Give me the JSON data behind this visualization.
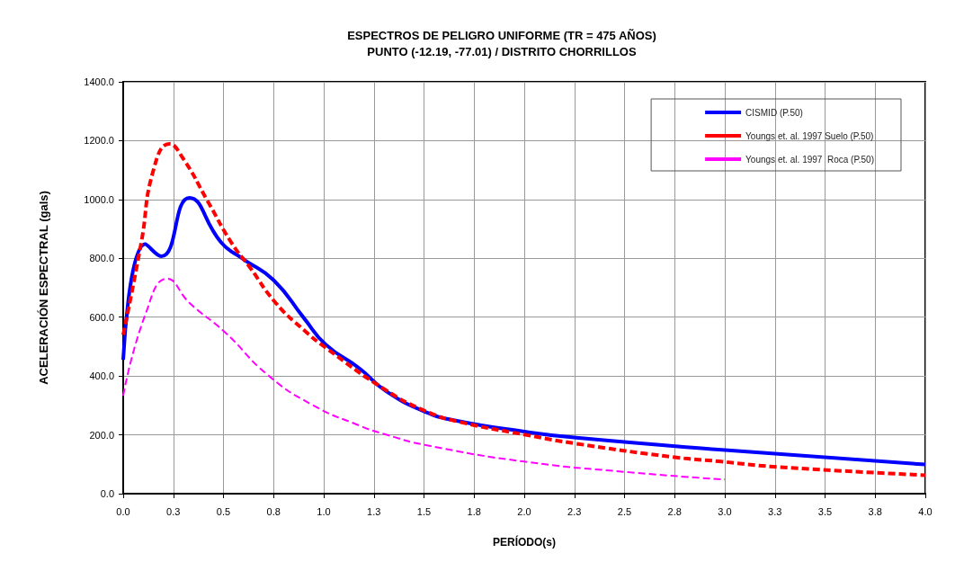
{
  "chart_data": {
    "type": "line",
    "title": "ESPECTROS DE PELIGRO UNIFORME (TR = 475 AÑOS)",
    "subtitle": "PUNTO (-12.19, -77.01) / DISTRITO CHORRILLOS",
    "xlabel": "PERÍODO(s)",
    "ylabel": "ACELERACIÓN ESPECTRAL (gals)",
    "xlim": [
      0,
      4
    ],
    "ylim": [
      0,
      1400
    ],
    "xticks": [
      {
        "value": 0,
        "label": "0.0"
      },
      {
        "value": 0.25,
        "label": "0.3"
      },
      {
        "value": 0.5,
        "label": "0.5"
      },
      {
        "value": 0.75,
        "label": "0.8"
      },
      {
        "value": 1,
        "label": "1.0"
      },
      {
        "value": 1.25,
        "label": "1.3"
      },
      {
        "value": 1.5,
        "label": "1.5"
      },
      {
        "value": 1.75,
        "label": "1.8"
      },
      {
        "value": 2,
        "label": "2.0"
      },
      {
        "value": 2.25,
        "label": "2.3"
      },
      {
        "value": 2.5,
        "label": "2.5"
      },
      {
        "value": 2.75,
        "label": "2.8"
      },
      {
        "value": 3,
        "label": "3.0"
      },
      {
        "value": 3.25,
        "label": "3.3"
      },
      {
        "value": 3.5,
        "label": "3.5"
      },
      {
        "value": 3.75,
        "label": "3.8"
      },
      {
        "value": 4,
        "label": "4.0"
      }
    ],
    "yticks": [
      {
        "value": 0,
        "label": "0.0"
      },
      {
        "value": 200,
        "label": "200.0"
      },
      {
        "value": 400,
        "label": "400.0"
      },
      {
        "value": 600,
        "label": "600.0"
      },
      {
        "value": 800,
        "label": "800.0"
      },
      {
        "value": 1000,
        "label": "1000.0"
      },
      {
        "value": 1200,
        "label": "1200.0"
      },
      {
        "value": 1400,
        "label": "1400.0"
      }
    ],
    "grid": true,
    "legend": "top right",
    "marker": "none",
    "series": [
      {
        "name": "CISMID (P.50)",
        "color": "#0000ff",
        "line_style": "solid",
        "x": [
          0,
          0.11,
          0.19,
          0.33,
          0.49,
          0.6,
          0.75,
          0.9,
          1.01,
          1.18,
          1.31,
          1.51,
          1.67,
          2.0,
          2.26,
          2.97,
          4.0
        ],
        "values": [
          455,
          848,
          807,
          1006,
          853,
          797,
          726,
          598,
          507,
          425,
          349,
          277,
          247,
          211,
          190,
          150,
          99
        ]
      },
      {
        "name": "Youngs et. al. 1997 Suelo (P.50)",
        "color": "#ff0000",
        "line_style": "dashed",
        "x": [
          0,
          0.09,
          0.15,
          0.23,
          0.3,
          0.42,
          0.54,
          0.63,
          0.76,
          0.9,
          1.01,
          1.31,
          1.51,
          1.67,
          2.0,
          2.26,
          2.75,
          2.97,
          3.26,
          4.0
        ],
        "values": [
          540,
          853,
          1098,
          1189,
          1138,
          996,
          853,
          771,
          649,
          557,
          496,
          352,
          280,
          245,
          201,
          170,
          124,
          110,
          91,
          63
        ]
      },
      {
        "name": "Youngs et. al. 1997  Roca (P.50)",
        "color": "#ff00ff",
        "line_style": "dashed",
        "x": [
          0,
          0.11,
          0.22,
          0.33,
          0.51,
          0.72,
          0.94,
          1.18,
          1.31,
          1.51,
          2.0,
          2.52,
          3.0
        ],
        "values": [
          333,
          608,
          731,
          649,
          547,
          404,
          303,
          231,
          201,
          165,
          109,
          73,
          48
        ]
      }
    ]
  }
}
